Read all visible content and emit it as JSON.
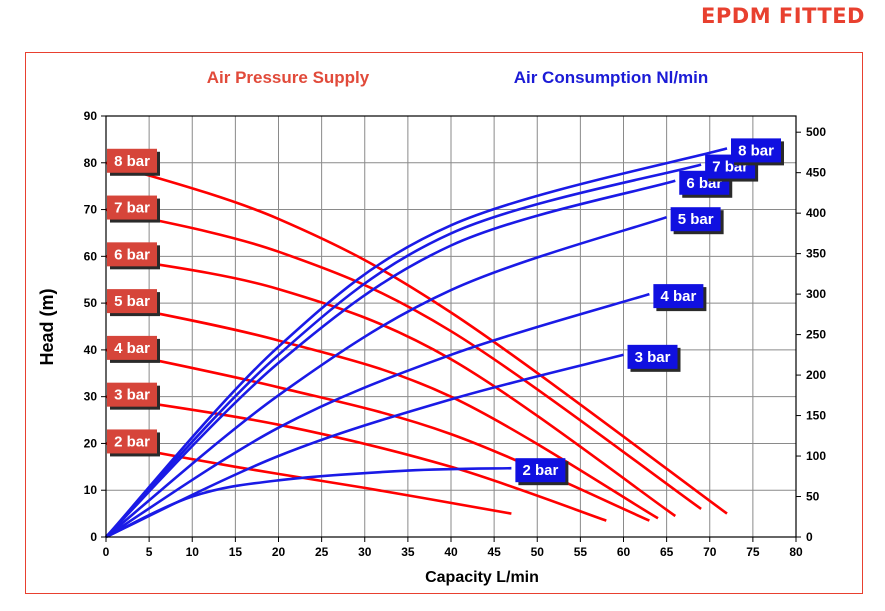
{
  "brand_label": "EPDM FITTED",
  "chart_data": {
    "type": "line",
    "legend_left": "Air Pressure Supply",
    "legend_right": "Air Consumption Nl/min",
    "xlabel": "Capacity L/min",
    "ylabel": "Head (m)",
    "xlim": [
      0,
      80
    ],
    "ylim": [
      0,
      90
    ],
    "y2lim": [
      0,
      520
    ],
    "x_ticks": [
      0,
      5,
      10,
      15,
      20,
      25,
      30,
      35,
      40,
      45,
      50,
      55,
      60,
      65,
      70,
      75,
      80
    ],
    "y_ticks": [
      0,
      10,
      20,
      30,
      40,
      50,
      60,
      70,
      80,
      90
    ],
    "y2_ticks": [
      0,
      50,
      100,
      150,
      200,
      250,
      300,
      350,
      400,
      450,
      500
    ],
    "grid": true,
    "colors": {
      "pressure": "#ff0000",
      "consumption": "#1a1ae6",
      "label_red": "#d6453a",
      "label_blue": "#1010e0"
    },
    "pressure_series": [
      {
        "name": "2 bar",
        "x": [
          0,
          15,
          30,
          47
        ],
        "y": [
          20,
          15,
          10.5,
          5
        ]
      },
      {
        "name": "3 bar",
        "x": [
          0,
          20,
          40,
          58
        ],
        "y": [
          30,
          24,
          15,
          3.5
        ]
      },
      {
        "name": "4 bar",
        "x": [
          0,
          20,
          40,
          63
        ],
        "y": [
          40,
          32,
          22,
          3.5
        ]
      },
      {
        "name": "5 bar",
        "x": [
          0,
          20,
          40,
          64
        ],
        "y": [
          50,
          42,
          30,
          4
        ]
      },
      {
        "name": "6 bar",
        "x": [
          0,
          20,
          40,
          66
        ],
        "y": [
          60,
          53,
          38,
          4.5
        ]
      },
      {
        "name": "7 bar",
        "x": [
          0,
          20,
          40,
          69
        ],
        "y": [
          70,
          61,
          44,
          6
        ]
      },
      {
        "name": "8 bar",
        "x": [
          0,
          20,
          40,
          72
        ],
        "y": [
          80,
          68,
          48,
          5
        ]
      }
    ],
    "consumption_series": [
      {
        "name": "2 bar",
        "x": [
          0,
          10,
          20,
          35,
          47
        ],
        "y": [
          0,
          50,
          70,
          82,
          85
        ]
      },
      {
        "name": "3 bar",
        "x": [
          0,
          20,
          40,
          60
        ],
        "y": [
          0,
          100,
          170,
          225
        ]
      },
      {
        "name": "4 bar",
        "x": [
          0,
          20,
          40,
          63
        ],
        "y": [
          0,
          135,
          225,
          300
        ]
      },
      {
        "name": "5 bar",
        "x": [
          0,
          20,
          40,
          65
        ],
        "y": [
          0,
          175,
          305,
          395
        ]
      },
      {
        "name": "6 bar",
        "x": [
          0,
          20,
          40,
          66
        ],
        "y": [
          0,
          215,
          360,
          440
        ]
      },
      {
        "name": "7 bar",
        "x": [
          0,
          20,
          40,
          69
        ],
        "y": [
          0,
          225,
          375,
          460
        ]
      },
      {
        "name": "8 bar",
        "x": [
          0,
          20,
          40,
          72
        ],
        "y": [
          0,
          235,
          385,
          480
        ]
      }
    ]
  }
}
